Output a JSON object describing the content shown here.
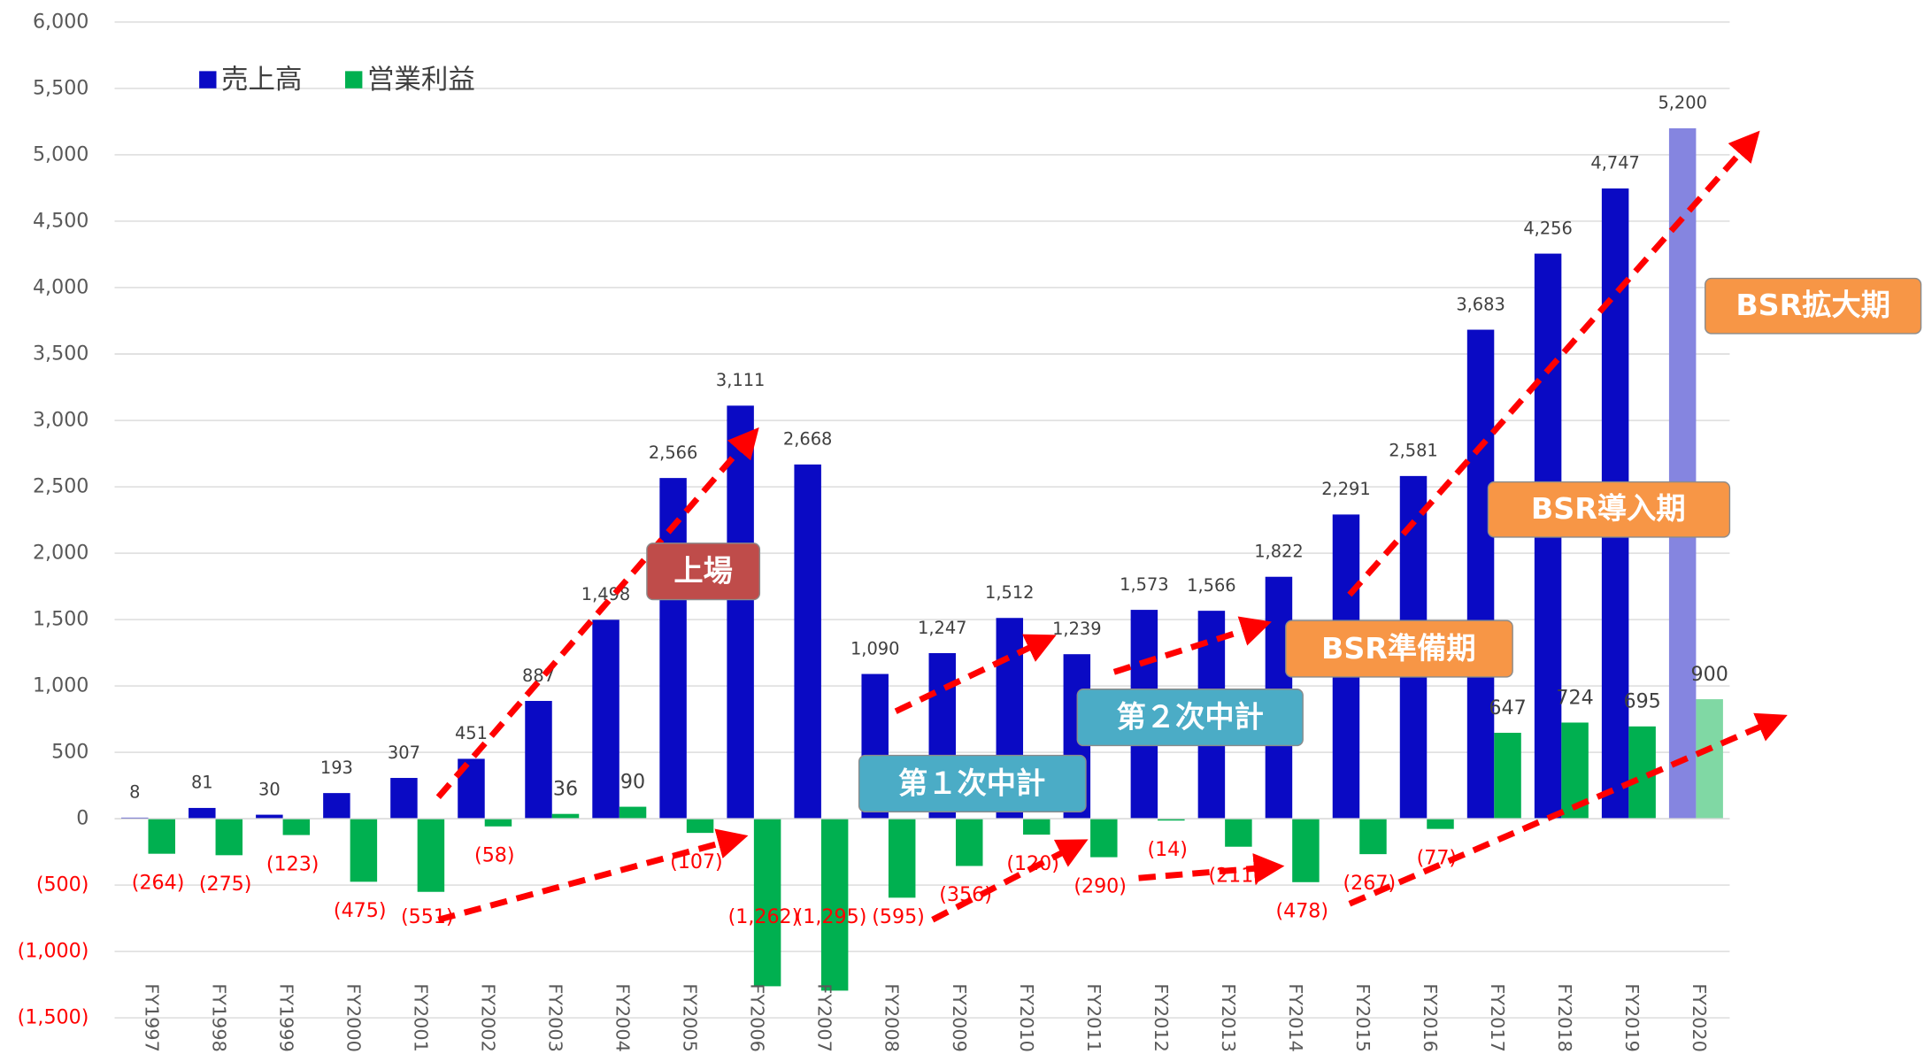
{
  "chart_data": {
    "type": "bar",
    "categories": [
      "FY1997",
      "FY1998",
      "FY1999",
      "FY2000",
      "FY2001",
      "FY2002",
      "FY2003",
      "FY2004",
      "FY2005",
      "FY2006",
      "FY2007",
      "FY2008",
      "FY2009",
      "FY2010",
      "FY2011",
      "FY2012",
      "FY2013",
      "FY2014",
      "FY2015",
      "FY2016",
      "FY2017",
      "FY2018",
      "FY2019",
      "FY2020"
    ],
    "series": [
      {
        "name": "売上高",
        "color": "#0a0ac4",
        "colors": [
          "#0a0ac4",
          "#0a0ac4",
          "#0a0ac4",
          "#0a0ac4",
          "#0a0ac4",
          "#0a0ac4",
          "#0a0ac4",
          "#0a0ac4",
          "#0a0ac4",
          "#0a0ac4",
          "#0a0ac4",
          "#0a0ac4",
          "#0a0ac4",
          "#0a0ac4",
          "#0a0ac4",
          "#0a0ac4",
          "#0a0ac4",
          "#0a0ac4",
          "#0a0ac4",
          "#0a0ac4",
          "#0a0ac4",
          "#0a0ac4",
          "#0a0ac4",
          "#8585e0"
        ],
        "values": [
          8,
          81,
          30,
          193,
          307,
          451,
          887,
          1498,
          2566,
          3111,
          2668,
          1090,
          1247,
          1512,
          1239,
          1573,
          1566,
          1822,
          2291,
          2581,
          3683,
          4256,
          4747,
          5200
        ],
        "value_labels": [
          "8",
          "81",
          "30",
          "193",
          "307",
          "451",
          "887",
          "1,498",
          "2,566",
          "3,111",
          "2,668",
          "1,090",
          "1,247",
          "1,512",
          "1,239",
          "1,573",
          "1,566",
          "1,822",
          "2,291",
          "2,581",
          "3,683",
          "4,256",
          "4,747",
          "5,200"
        ]
      },
      {
        "name": "営業利益",
        "color": "#00b050",
        "colors": [
          "#00b050",
          "#00b050",
          "#00b050",
          "#00b050",
          "#00b050",
          "#00b050",
          "#00b050",
          "#00b050",
          "#00b050",
          "#00b050",
          "#00b050",
          "#00b050",
          "#00b050",
          "#00b050",
          "#00b050",
          "#00b050",
          "#00b050",
          "#00b050",
          "#00b050",
          "#00b050",
          "#00b050",
          "#00b050",
          "#00b050",
          "#80d8a4"
        ],
        "values": [
          -264,
          -275,
          -123,
          -475,
          -551,
          -58,
          36,
          90,
          -107,
          -1262,
          -1295,
          -595,
          -356,
          -120,
          -290,
          -14,
          -211,
          -478,
          -267,
          -77,
          647,
          724,
          695,
          900
        ],
        "value_labels": [
          "(264)",
          "(275)",
          "(123)",
          "(475)",
          "(551)",
          "(58)",
          "36",
          "90",
          "(107)",
          "(1,262)",
          "(1,295)",
          "(595)",
          "(356)",
          "(120)",
          "(290)",
          "(14)",
          "(211)",
          "(478)",
          "(267)",
          "(77)",
          "647",
          "724",
          "695",
          "900"
        ]
      }
    ],
    "ylim": [
      -1500,
      6000
    ],
    "yticks": [
      {
        "value": -1500,
        "label": "(1,500)"
      },
      {
        "value": -1000,
        "label": "(1,000)"
      },
      {
        "value": -500,
        "label": "(500)"
      },
      0,
      {
        "value": 500,
        "label": "500"
      },
      {
        "value": 1000,
        "label": "1,000"
      },
      {
        "value": 1500,
        "label": "1,500"
      },
      {
        "value": 2000,
        "label": "2,000"
      },
      {
        "value": 2500,
        "label": "2,500"
      },
      {
        "value": 3000,
        "label": "3,000"
      },
      {
        "value": 3500,
        "label": "3,500"
      },
      {
        "value": 4000,
        "label": "4,000"
      },
      {
        "value": 4500,
        "label": "4,500"
      },
      {
        "value": 5000,
        "label": "5,000"
      },
      {
        "value": 5500,
        "label": "5,500"
      },
      {
        "value": 6000,
        "label": "6,000"
      }
    ],
    "grid": true,
    "legend": "top-left",
    "annotations": [
      "上場",
      "第１次中計",
      "第２次中計",
      "BSR準備期",
      "BSR導入期",
      "BSR拡大期"
    ]
  }
}
